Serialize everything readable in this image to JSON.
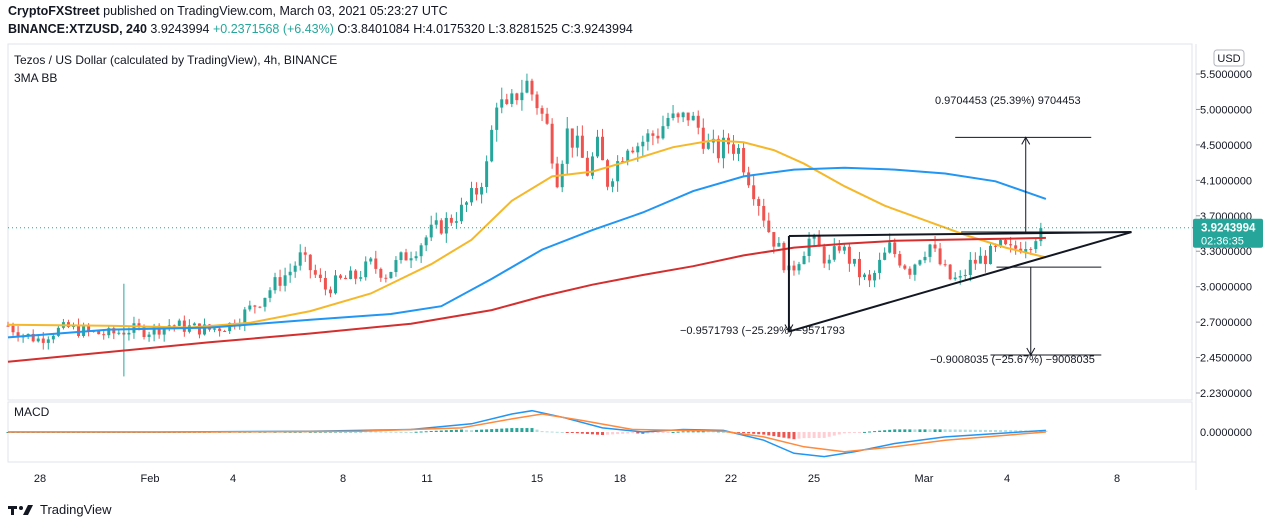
{
  "header": {
    "publisher": "CryptoFXStreet",
    "published_text": "published on TradingView.com, March 03, 2021 05:23:27 UTC",
    "symbol": "BINANCE:XTZUSD, 240",
    "last": "3.9243994",
    "change": "+0.2371568 (+6.43%)",
    "o_label": "O:",
    "o": "3.8401084",
    "h_label": "H:",
    "h": "4.0175320",
    "l_label": "L:",
    "l": "3.8281525",
    "c_label": "C:",
    "c": "3.9243994"
  },
  "footer": {
    "brand": "TradingView",
    "icon": "tradingview-logo-icon"
  },
  "colors": {
    "up": "#26a69a",
    "down": "#ef5350",
    "ma_fast": "#f5b82a",
    "ma_mid": "#2196f3",
    "ma_slow": "#d32f2f",
    "macd": "#2196f3",
    "signal": "#ff8a3d",
    "price_label": "#26a69a"
  },
  "chart_data": [
    {
      "type": "candlestick",
      "title": "Tezos / US Dollar (calculated by TradingView), 4h, BINANCE",
      "indicator_label": "3MA BB",
      "currency_label": "USD",
      "y_ticks": [
        "5.5000000",
        "5.0000000",
        "4.5000000",
        "4.1000000",
        "3.7000000",
        "3.3000000",
        "3.0000000",
        "2.7000000",
        "2.4500000",
        "2.2300000"
      ],
      "x_ticks": [
        "28",
        "Feb",
        "4",
        "8",
        "11",
        "15",
        "18",
        "22",
        "25",
        "Mar",
        "4",
        "8"
      ],
      "last_price": "3.9243994",
      "countdown": "02:36:35",
      "grid": false,
      "price_path": [
        {
          "i": 0,
          "p": 2.92
        },
        {
          "i": 3,
          "p": 2.83
        },
        {
          "i": 6,
          "p": 2.78
        },
        {
          "i": 9,
          "p": 2.86
        },
        {
          "i": 12,
          "p": 2.9
        },
        {
          "i": 16,
          "p": 2.85
        },
        {
          "i": 20,
          "p": 2.83
        },
        {
          "i": 24,
          "p": 2.88
        },
        {
          "i": 28,
          "p": 2.87
        },
        {
          "i": 32,
          "p": 2.93
        },
        {
          "i": 36,
          "p": 2.9
        },
        {
          "i": 40,
          "p": 2.88
        },
        {
          "i": 44,
          "p": 2.93
        },
        {
          "i": 47,
          "p": 3.05
        },
        {
          "i": 50,
          "p": 3.18
        },
        {
          "i": 53,
          "p": 3.35
        },
        {
          "i": 56,
          "p": 3.48
        },
        {
          "i": 58,
          "p": 3.62
        },
        {
          "i": 60,
          "p": 3.5
        },
        {
          "i": 63,
          "p": 3.3
        },
        {
          "i": 66,
          "p": 3.38
        },
        {
          "i": 69,
          "p": 3.42
        },
        {
          "i": 72,
          "p": 3.55
        },
        {
          "i": 75,
          "p": 3.45
        },
        {
          "i": 78,
          "p": 3.6
        },
        {
          "i": 81,
          "p": 3.72
        },
        {
          "i": 84,
          "p": 3.88
        },
        {
          "i": 87,
          "p": 3.98
        },
        {
          "i": 90,
          "p": 4.1
        },
        {
          "i": 93,
          "p": 4.3
        },
        {
          "i": 95,
          "p": 4.55
        },
        {
          "i": 97,
          "p": 5.25
        },
        {
          "i": 99,
          "p": 5.1
        },
        {
          "i": 101,
          "p": 5.3
        },
        {
          "i": 103,
          "p": 5.4
        },
        {
          "i": 105,
          "p": 5.2
        },
        {
          "i": 107,
          "p": 4.95
        },
        {
          "i": 109,
          "p": 4.45
        },
        {
          "i": 111,
          "p": 4.9
        },
        {
          "i": 113,
          "p": 4.75
        },
        {
          "i": 115,
          "p": 4.5
        },
        {
          "i": 117,
          "p": 4.75
        },
        {
          "i": 119,
          "p": 4.4
        },
        {
          "i": 121,
          "p": 4.6
        },
        {
          "i": 123,
          "p": 4.8
        },
        {
          "i": 125,
          "p": 4.78
        },
        {
          "i": 127,
          "p": 4.85
        },
        {
          "i": 129,
          "p": 4.9
        },
        {
          "i": 131,
          "p": 5.05
        },
        {
          "i": 133,
          "p": 5.0
        },
        {
          "i": 135,
          "p": 5.08
        },
        {
          "i": 137,
          "p": 4.95
        },
        {
          "i": 139,
          "p": 4.75
        },
        {
          "i": 141,
          "p": 4.7
        },
        {
          "i": 143,
          "p": 4.8
        },
        {
          "i": 145,
          "p": 4.72
        },
        {
          "i": 147,
          "p": 4.45
        },
        {
          "i": 149,
          "p": 4.2
        },
        {
          "i": 151,
          "p": 3.9
        },
        {
          "i": 153,
          "p": 3.7
        },
        {
          "i": 155,
          "p": 3.45
        },
        {
          "i": 157,
          "p": 3.62
        },
        {
          "i": 159,
          "p": 3.8
        },
        {
          "i": 161,
          "p": 3.7
        },
        {
          "i": 163,
          "p": 3.55
        },
        {
          "i": 165,
          "p": 3.75
        },
        {
          "i": 167,
          "p": 3.6
        },
        {
          "i": 169,
          "p": 3.45
        },
        {
          "i": 171,
          "p": 3.35
        },
        {
          "i": 173,
          "p": 3.55
        },
        {
          "i": 175,
          "p": 3.72
        },
        {
          "i": 177,
          "p": 3.6
        },
        {
          "i": 179,
          "p": 3.5
        },
        {
          "i": 181,
          "p": 3.65
        },
        {
          "i": 183,
          "p": 3.75
        },
        {
          "i": 185,
          "p": 3.55
        },
        {
          "i": 187,
          "p": 3.4
        },
        {
          "i": 189,
          "p": 3.38
        },
        {
          "i": 191,
          "p": 3.55
        },
        {
          "i": 193,
          "p": 3.6
        },
        {
          "i": 195,
          "p": 3.65
        },
        {
          "i": 197,
          "p": 3.72
        },
        {
          "i": 199,
          "p": 3.68
        },
        {
          "i": 201,
          "p": 3.75
        },
        {
          "i": 203,
          "p": 3.8
        },
        {
          "i": 205,
          "p": 3.92
        }
      ],
      "moving_averages": [
        {
          "key": "ma_fast",
          "points": [
            {
              "i": 0,
              "p": 2.93
            },
            {
              "i": 20,
              "p": 2.92
            },
            {
              "i": 36,
              "p": 2.9
            },
            {
              "i": 48,
              "p": 2.95
            },
            {
              "i": 60,
              "p": 3.07
            },
            {
              "i": 72,
              "p": 3.25
            },
            {
              "i": 84,
              "p": 3.55
            },
            {
              "i": 92,
              "p": 3.8
            },
            {
              "i": 100,
              "p": 4.2
            },
            {
              "i": 108,
              "p": 4.45
            },
            {
              "i": 116,
              "p": 4.5
            },
            {
              "i": 124,
              "p": 4.62
            },
            {
              "i": 132,
              "p": 4.75
            },
            {
              "i": 140,
              "p": 4.82
            },
            {
              "i": 146,
              "p": 4.8
            },
            {
              "i": 152,
              "p": 4.72
            },
            {
              "i": 158,
              "p": 4.58
            },
            {
              "i": 166,
              "p": 4.35
            },
            {
              "i": 174,
              "p": 4.15
            },
            {
              "i": 182,
              "p": 4.0
            },
            {
              "i": 190,
              "p": 3.85
            },
            {
              "i": 198,
              "p": 3.72
            },
            {
              "i": 206,
              "p": 3.62
            }
          ]
        },
        {
          "key": "ma_mid",
          "points": [
            {
              "i": 0,
              "p": 2.8
            },
            {
              "i": 20,
              "p": 2.88
            },
            {
              "i": 40,
              "p": 2.9
            },
            {
              "i": 60,
              "p": 2.98
            },
            {
              "i": 76,
              "p": 3.04
            },
            {
              "i": 86,
              "p": 3.12
            },
            {
              "i": 96,
              "p": 3.4
            },
            {
              "i": 106,
              "p": 3.7
            },
            {
              "i": 116,
              "p": 3.9
            },
            {
              "i": 126,
              "p": 4.08
            },
            {
              "i": 136,
              "p": 4.3
            },
            {
              "i": 146,
              "p": 4.45
            },
            {
              "i": 156,
              "p": 4.52
            },
            {
              "i": 166,
              "p": 4.54
            },
            {
              "i": 176,
              "p": 4.52
            },
            {
              "i": 186,
              "p": 4.48
            },
            {
              "i": 196,
              "p": 4.4
            },
            {
              "i": 206,
              "p": 4.22
            }
          ]
        },
        {
          "key": "ma_slow",
          "points": [
            {
              "i": 0,
              "p": 2.55
            },
            {
              "i": 20,
              "p": 2.65
            },
            {
              "i": 40,
              "p": 2.75
            },
            {
              "i": 60,
              "p": 2.84
            },
            {
              "i": 80,
              "p": 2.94
            },
            {
              "i": 96,
              "p": 3.08
            },
            {
              "i": 106,
              "p": 3.22
            },
            {
              "i": 116,
              "p": 3.34
            },
            {
              "i": 126,
              "p": 3.44
            },
            {
              "i": 136,
              "p": 3.53
            },
            {
              "i": 146,
              "p": 3.64
            },
            {
              "i": 156,
              "p": 3.72
            },
            {
              "i": 166,
              "p": 3.76
            },
            {
              "i": 176,
              "p": 3.79
            },
            {
              "i": 186,
              "p": 3.8
            },
            {
              "i": 196,
              "p": 3.81
            },
            {
              "i": 206,
              "p": 3.82
            }
          ]
        }
      ],
      "triangle": {
        "resistance": [
          {
            "i": 155,
            "p": 3.84
          },
          {
            "i": 223,
            "p": 3.88
          }
        ],
        "support": [
          {
            "i": 155,
            "p": 2.86
          },
          {
            "i": 223,
            "p": 3.88
          }
        ],
        "left_edge": [
          {
            "i": 155,
            "p": 3.84
          },
          {
            "i": 155,
            "p": 2.86
          }
        ]
      },
      "annotations": [
        {
          "text": "0.9704453 (25.39%) 9704453",
          "from": {
            "i": 202,
            "p": 3.88
          },
          "to": {
            "i": 202,
            "p": 4.85
          },
          "bar_from": 188,
          "bar_to": 215
        },
        {
          "text": "−0.9571793 (−25.29%) −9571793",
          "from": {
            "i": 155,
            "p": 3.84
          },
          "to": {
            "i": 155,
            "p": 2.86
          }
        },
        {
          "text": "−0.9008035 (−25.67%) −9008035",
          "from": {
            "i": 203,
            "p": 3.52
          },
          "to": {
            "i": 203,
            "p": 2.62
          },
          "bar_from": 195,
          "bar_to": 217
        }
      ]
    },
    {
      "type": "macd",
      "title": "MACD",
      "y_ticks": [
        "0.0000000"
      ],
      "macd": [
        {
          "i": 0,
          "v": 0.0
        },
        {
          "i": 30,
          "v": 0.0
        },
        {
          "i": 60,
          "v": 0.01
        },
        {
          "i": 80,
          "v": 0.03
        },
        {
          "i": 92,
          "v": 0.1
        },
        {
          "i": 100,
          "v": 0.22
        },
        {
          "i": 104,
          "v": 0.26
        },
        {
          "i": 110,
          "v": 0.18
        },
        {
          "i": 118,
          "v": 0.05
        },
        {
          "i": 126,
          "v": 0.0
        },
        {
          "i": 134,
          "v": 0.03
        },
        {
          "i": 142,
          "v": 0.02
        },
        {
          "i": 150,
          "v": -0.1
        },
        {
          "i": 156,
          "v": -0.26
        },
        {
          "i": 162,
          "v": -0.3
        },
        {
          "i": 168,
          "v": -0.24
        },
        {
          "i": 176,
          "v": -0.14
        },
        {
          "i": 186,
          "v": -0.06
        },
        {
          "i": 196,
          "v": -0.02
        },
        {
          "i": 206,
          "v": 0.02
        }
      ],
      "signal": [
        {
          "i": 0,
          "v": 0.0
        },
        {
          "i": 40,
          "v": 0.0
        },
        {
          "i": 70,
          "v": 0.01
        },
        {
          "i": 90,
          "v": 0.05
        },
        {
          "i": 100,
          "v": 0.16
        },
        {
          "i": 106,
          "v": 0.22
        },
        {
          "i": 114,
          "v": 0.14
        },
        {
          "i": 124,
          "v": 0.03
        },
        {
          "i": 134,
          "v": 0.02
        },
        {
          "i": 142,
          "v": 0.01
        },
        {
          "i": 150,
          "v": -0.06
        },
        {
          "i": 158,
          "v": -0.18
        },
        {
          "i": 166,
          "v": -0.24
        },
        {
          "i": 176,
          "v": -0.18
        },
        {
          "i": 186,
          "v": -0.1
        },
        {
          "i": 196,
          "v": -0.05
        },
        {
          "i": 206,
          "v": 0.0
        }
      ]
    }
  ]
}
